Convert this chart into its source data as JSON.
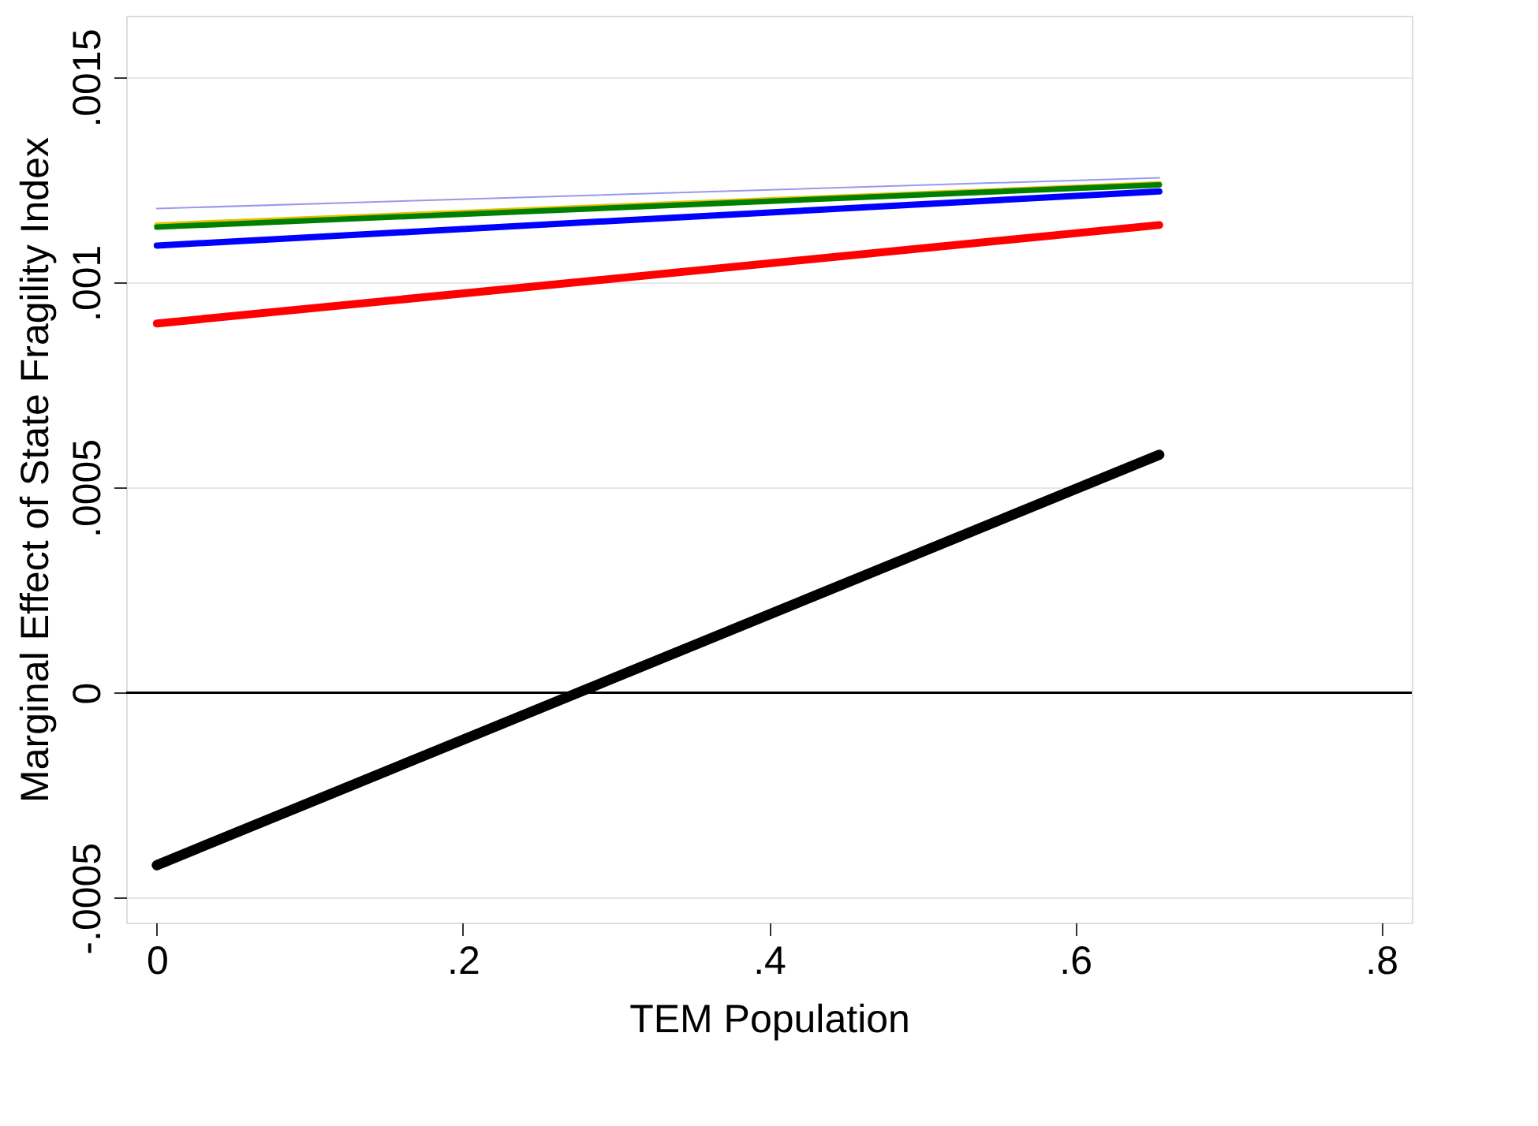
{
  "chart_data": {
    "type": "line",
    "xlabel": "TEM Population",
    "ylabel": "Marginal Effect of State Fragility Index",
    "x": [
      0,
      0.655
    ],
    "series": [
      {
        "color": "#9999ee",
        "values": [
          0.00118,
          0.001255
        ]
      },
      {
        "color": "#e6c000",
        "values": [
          0.00114,
          0.00124
        ]
      },
      {
        "color": "#008000",
        "values": [
          0.001135,
          0.001238
        ]
      },
      {
        "color": "#0000ff",
        "values": [
          0.00109,
          0.001222
        ]
      },
      {
        "color": "#ff0000",
        "values": [
          0.0009,
          0.00114
        ]
      },
      {
        "color": "#000000",
        "values": [
          -0.00042,
          0.00058
        ]
      }
    ],
    "xlim": [
      -0.02,
      0.82
    ],
    "ylim": [
      -0.00056,
      0.00165
    ],
    "xticks": [
      {
        "value": 0,
        "label": "0"
      },
      {
        "value": 0.2,
        "label": ".2"
      },
      {
        "value": 0.4,
        "label": ".4"
      },
      {
        "value": 0.6,
        "label": ".6"
      },
      {
        "value": 0.8,
        "label": ".8"
      }
    ],
    "yticks": [
      {
        "value": -0.0005,
        "label": "-.0005"
      },
      {
        "value": 0,
        "label": "0"
      },
      {
        "value": 0.0005,
        "label": ".0005"
      },
      {
        "value": 0.001,
        "label": ".001"
      },
      {
        "value": 0.0015,
        "label": ".0015"
      }
    ],
    "ref_lines": [
      {
        "axis": "y",
        "value": 0,
        "color": "#000000"
      }
    ],
    "grid": "y"
  }
}
